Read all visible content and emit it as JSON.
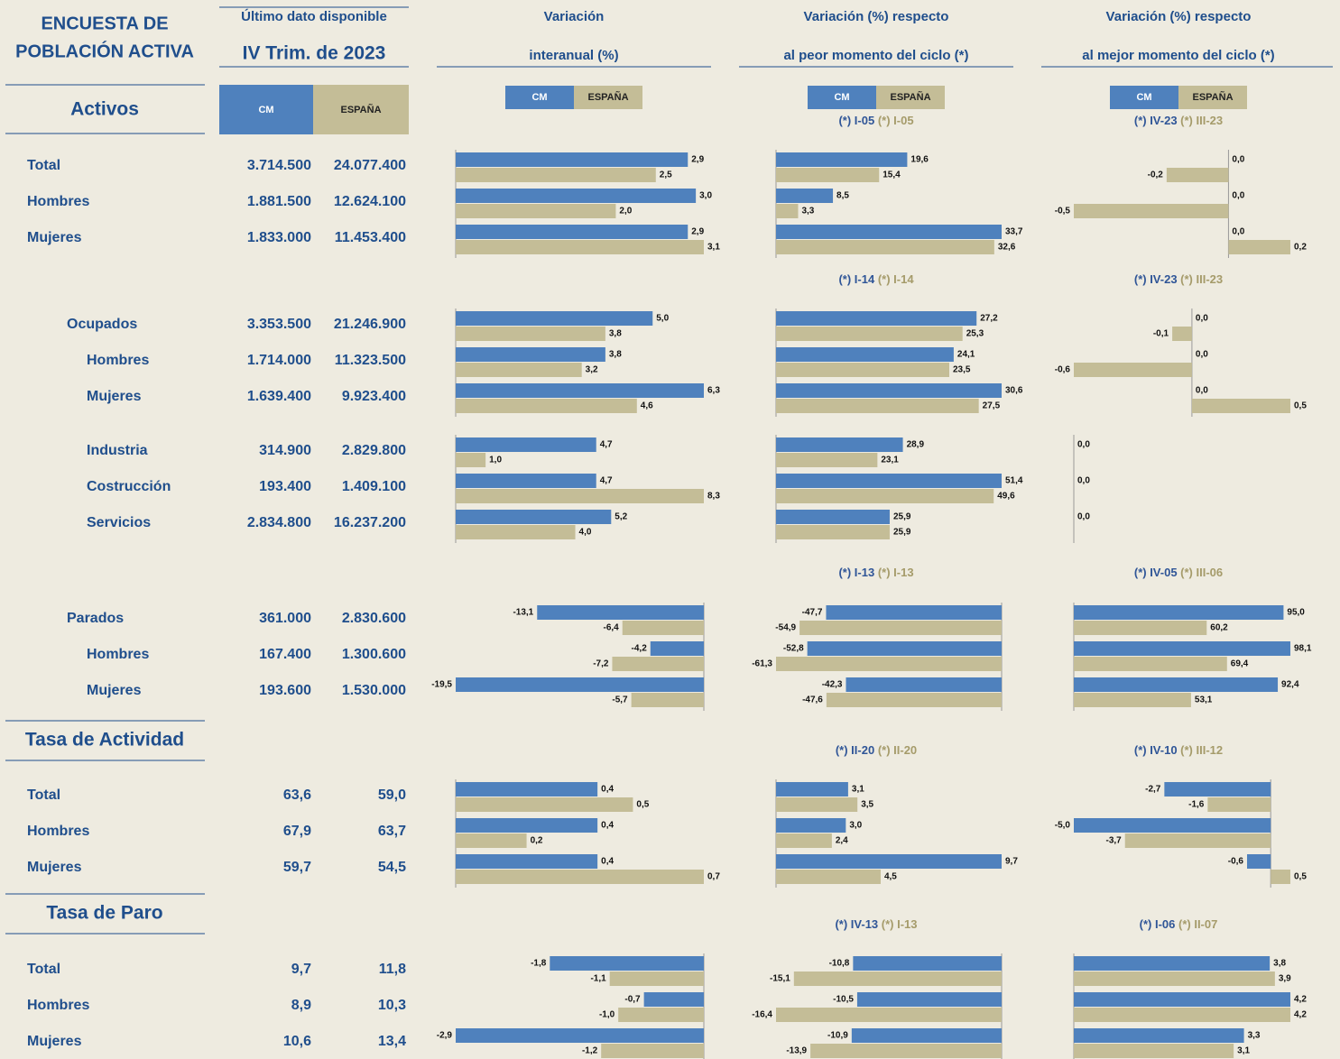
{
  "header": {
    "title": [
      "ENCUESTA DE",
      "POBLACIÓN ACTIVA"
    ],
    "latest": "Último dato disponible",
    "period": "IV Trim. de 2023",
    "columns": [
      {
        "lines": [
          "Variación",
          "interanual (%)"
        ]
      },
      {
        "lines": [
          "Variación (%) respecto",
          "al peor momento del ciclo  (*)"
        ]
      },
      {
        "lines": [
          "Variación (%) respecto",
          "al mejor momento del ciclo (*)"
        ]
      }
    ]
  },
  "legend": [
    {
      "name": "CM",
      "color": "#4f81bd"
    },
    {
      "name": "ESPAÑA",
      "color": "#c4bd97"
    }
  ],
  "sections": [
    {
      "heading": "Activos",
      "rows": [
        {
          "label": "Total",
          "cm": "3.714.500",
          "es": "24.077.400"
        },
        {
          "label": "Hombres",
          "cm": "1.881.500",
          "es": "12.624.100"
        },
        {
          "label": "Mujeres",
          "cm": "1.833.000",
          "es": "11.453.400"
        }
      ],
      "refs": [
        {
          "cm": "(*) I-05",
          "es": "(*) I-05"
        },
        {
          "cm": "(*) IV-23",
          "es": "(*) III-23"
        }
      ],
      "blocks": [
        [
          {
            "type": "bar",
            "series": [
              {
                "values": [
                  2.9,
                  3.0,
                  2.9
                ],
                "value_labels": [
                  "2,9",
                  "3,0",
                  "2,9"
                ]
              },
              {
                "values": [
                  2.5,
                  2.0,
                  3.1
                ],
                "value_labels": [
                  "2,5",
                  "2,0",
                  "3,1"
                ]
              }
            ]
          },
          {
            "type": "bar",
            "series": [
              {
                "values": [
                  19.6,
                  8.5,
                  33.7
                ],
                "value_labels": [
                  "19,6",
                  "8,5",
                  "33,7"
                ]
              },
              {
                "values": [
                  15.4,
                  3.3,
                  32.6
                ],
                "value_labels": [
                  "15,4",
                  "3,3",
                  "32,6"
                ]
              }
            ]
          },
          {
            "type": "bar",
            "series": [
              {
                "values": [
                  0.0,
                  0.0,
                  0.0
                ],
                "value_labels": [
                  "0,0",
                  "0,0",
                  "0,0"
                ]
              },
              {
                "values": [
                  -0.2,
                  -0.5,
                  0.2
                ],
                "value_labels": [
                  "-0,2",
                  "-0,5",
                  "0,2"
                ]
              }
            ]
          }
        ]
      ]
    },
    {
      "rows": [
        {
          "label": "Ocupados",
          "cm": "3.353.500",
          "es": "21.246.900"
        },
        {
          "label": "Hombres",
          "cm": "1.714.000",
          "es": "11.323.500"
        },
        {
          "label": "Mujeres",
          "cm": "1.639.400",
          "es": "9.923.400"
        },
        {
          "label": "Industria",
          "cm": "314.900",
          "es": "2.829.800"
        },
        {
          "label": "Costrucción",
          "cm": "193.400",
          "es": "1.409.100"
        },
        {
          "label": "Servicios",
          "cm": "2.834.800",
          "es": "16.237.200"
        }
      ],
      "refs": [
        {
          "cm": "(*) I-14",
          "es": "(*) I-14"
        },
        {
          "cm": "(*) IV-23",
          "es": "(*) III-23"
        }
      ],
      "blocks": [
        [
          {
            "type": "bar",
            "series": [
              {
                "values": [
                  5.0,
                  3.8,
                  6.3
                ],
                "value_labels": [
                  "5,0",
                  "3,8",
                  "6,3"
                ]
              },
              {
                "values": [
                  3.8,
                  3.2,
                  4.6
                ],
                "value_labels": [
                  "3,8",
                  "3,2",
                  "4,6"
                ]
              }
            ]
          },
          {
            "type": "bar",
            "series": [
              {
                "values": [
                  27.2,
                  24.1,
                  30.6
                ],
                "value_labels": [
                  "27,2",
                  "24,1",
                  "30,6"
                ]
              },
              {
                "values": [
                  25.3,
                  23.5,
                  27.5
                ],
                "value_labels": [
                  "25,3",
                  "23,5",
                  "27,5"
                ]
              }
            ]
          },
          {
            "type": "bar",
            "series": [
              {
                "values": [
                  0.0,
                  0.0,
                  0.0
                ],
                "value_labels": [
                  "0,0",
                  "0,0",
                  "0,0"
                ]
              },
              {
                "values": [
                  -0.1,
                  -0.6,
                  0.5
                ],
                "value_labels": [
                  "-0,1",
                  "-0,6",
                  "0,5"
                ]
              }
            ]
          }
        ],
        [
          {
            "type": "bar",
            "series": [
              {
                "values": [
                  4.7,
                  4.7,
                  5.2
                ],
                "value_labels": [
                  "4,7",
                  "4,7",
                  "5,2"
                ]
              },
              {
                "values": [
                  1.0,
                  8.3,
                  4.0
                ],
                "value_labels": [
                  "1,0",
                  "8,3",
                  "4,0"
                ]
              }
            ]
          },
          {
            "type": "bar",
            "series": [
              {
                "values": [
                  28.9,
                  51.4,
                  25.9
                ],
                "value_labels": [
                  "28,9",
                  "51,4",
                  "25,9"
                ]
              },
              {
                "values": [
                  23.1,
                  49.6,
                  25.9
                ],
                "value_labels": [
                  "23,1",
                  "49,6",
                  "25,9"
                ]
              }
            ]
          },
          {
            "type": "bar",
            "series": [
              {
                "values": [
                  0.0,
                  0.0,
                  0.0
                ],
                "value_labels": [
                  "0,0",
                  "0,0",
                  "0,0"
                ]
              },
              {
                "values": [
                  null,
                  null,
                  null
                ],
                "value_labels": [
                  null,
                  null,
                  null
                ]
              }
            ]
          }
        ]
      ]
    },
    {
      "rows": [
        {
          "label": "Parados",
          "cm": "361.000",
          "es": "2.830.600"
        },
        {
          "label": "Hombres",
          "cm": "167.400",
          "es": "1.300.600"
        },
        {
          "label": "Mujeres",
          "cm": "193.600",
          "es": "1.530.000"
        }
      ],
      "refs": [
        {
          "cm": "(*) I-13",
          "es": "(*) I-13"
        },
        {
          "cm": "(*) IV-05",
          "es": "(*) III-06"
        }
      ],
      "blocks": [
        [
          {
            "type": "bar",
            "series": [
              {
                "values": [
                  -13.1,
                  -4.2,
                  -19.5
                ],
                "value_labels": [
                  "-13,1",
                  "-4,2",
                  "-19,5"
                ]
              },
              {
                "values": [
                  -6.4,
                  -7.2,
                  -5.7
                ],
                "value_labels": [
                  "-6,4",
                  "-7,2",
                  "-5,7"
                ]
              }
            ]
          },
          {
            "type": "bar",
            "series": [
              {
                "values": [
                  -47.7,
                  -52.8,
                  -42.3
                ],
                "value_labels": [
                  "-47,7",
                  "-52,8",
                  "-42,3"
                ]
              },
              {
                "values": [
                  -54.9,
                  -61.3,
                  -47.6
                ],
                "value_labels": [
                  "-54,9",
                  "-61,3",
                  "-47,6"
                ]
              }
            ]
          },
          {
            "type": "bar",
            "series": [
              {
                "values": [
                  95.0,
                  98.1,
                  92.4
                ],
                "value_labels": [
                  "95,0",
                  "98,1",
                  "92,4"
                ]
              },
              {
                "values": [
                  60.2,
                  69.4,
                  53.1
                ],
                "value_labels": [
                  "60,2",
                  "69,4",
                  "53,1"
                ]
              }
            ]
          }
        ]
      ]
    },
    {
      "heading": "Tasa de Actividad",
      "rows": [
        {
          "label": "Total",
          "cm": "63,6",
          "es": "59,0"
        },
        {
          "label": "Hombres",
          "cm": "67,9",
          "es": "63,7"
        },
        {
          "label": "Mujeres",
          "cm": "59,7",
          "es": "54,5"
        }
      ],
      "refs": [
        {
          "cm": "(*) II-20",
          "es": "(*) II-20"
        },
        {
          "cm": "(*) IV-10",
          "es": "(*) III-12"
        }
      ],
      "blocks": [
        [
          {
            "type": "bar",
            "series": [
              {
                "values": [
                  0.4,
                  0.4,
                  0.4
                ],
                "value_labels": [
                  "0,4",
                  "0,4",
                  "0,4"
                ]
              },
              {
                "values": [
                  0.5,
                  0.2,
                  0.7
                ],
                "value_labels": [
                  "0,5",
                  "0,2",
                  "0,7"
                ]
              }
            ]
          },
          {
            "type": "bar",
            "series": [
              {
                "values": [
                  3.1,
                  3.0,
                  9.7
                ],
                "value_labels": [
                  "3,1",
                  "3,0",
                  "9,7"
                ]
              },
              {
                "values": [
                  3.5,
                  2.4,
                  4.5
                ],
                "value_labels": [
                  "3,5",
                  "2,4",
                  "4,5"
                ]
              }
            ]
          },
          {
            "type": "bar",
            "series": [
              {
                "values": [
                  -2.7,
                  -5.0,
                  -0.6
                ],
                "value_labels": [
                  "-2,7",
                  "-5,0",
                  "-0,6"
                ]
              },
              {
                "values": [
                  -1.6,
                  -3.7,
                  0.5
                ],
                "value_labels": [
                  "-1,6",
                  "-3,7",
                  "0,5"
                ]
              }
            ]
          }
        ]
      ]
    },
    {
      "heading": "Tasa de Paro",
      "rows": [
        {
          "label": "Total",
          "cm": "9,7",
          "es": "11,8"
        },
        {
          "label": "Hombres",
          "cm": "8,9",
          "es": "10,3"
        },
        {
          "label": "Mujeres",
          "cm": "10,6",
          "es": "13,4"
        }
      ],
      "refs": [
        {
          "cm": "(*) IV-13",
          "es": "(*) I-13"
        },
        {
          "cm": "(*) I-06",
          "es": "(*) II-07"
        }
      ],
      "blocks": [
        [
          {
            "type": "bar",
            "series": [
              {
                "values": [
                  -1.8,
                  -0.7,
                  -2.9
                ],
                "value_labels": [
                  "-1,8",
                  "-0,7",
                  "-2,9"
                ]
              },
              {
                "values": [
                  -1.1,
                  -1.0,
                  -1.2
                ],
                "value_labels": [
                  "-1,1",
                  "-1,0",
                  "-1,2"
                ]
              }
            ]
          },
          {
            "type": "bar",
            "series": [
              {
                "values": [
                  -10.8,
                  -10.5,
                  -10.9
                ],
                "value_labels": [
                  "-10,8",
                  "-10,5",
                  "-10,9"
                ]
              },
              {
                "values": [
                  -15.1,
                  -16.4,
                  -13.9
                ],
                "value_labels": [
                  "-15,1",
                  "-16,4",
                  "-13,9"
                ]
              }
            ]
          },
          {
            "type": "bar",
            "series": [
              {
                "values": [
                  3.8,
                  4.2,
                  3.3
                ],
                "value_labels": [
                  "3,8",
                  "4,2",
                  "3,3"
                ]
              },
              {
                "values": [
                  3.9,
                  4.2,
                  3.1
                ],
                "value_labels": [
                  "3,9",
                  "4,2",
                  "3,1"
                ]
              }
            ]
          }
        ]
      ]
    }
  ]
}
